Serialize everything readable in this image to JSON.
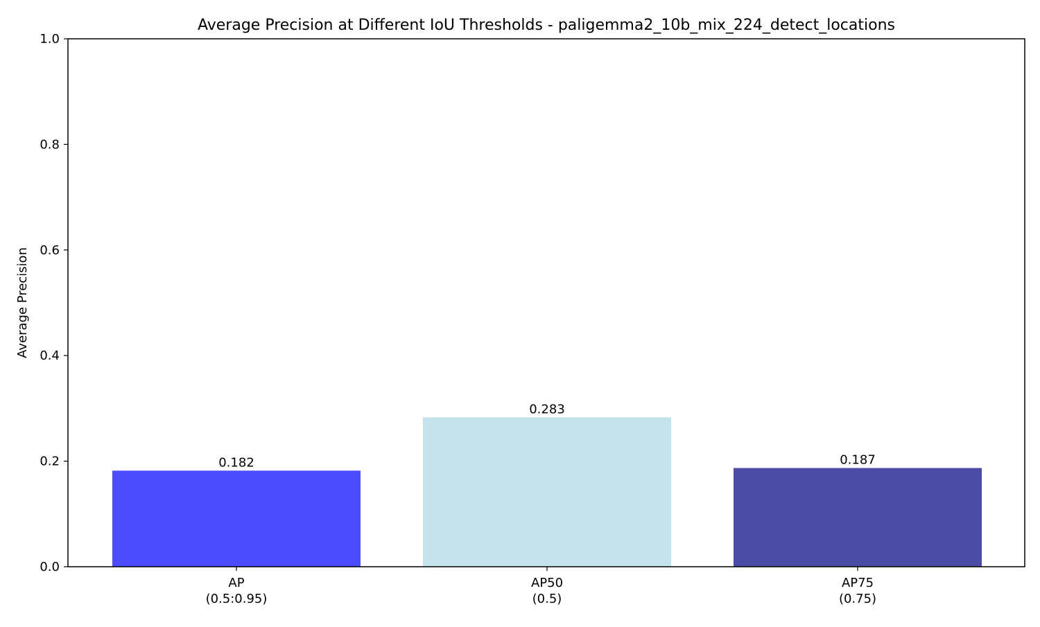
{
  "chart_data": {
    "type": "bar",
    "title": "Average Precision at Different IoU Thresholds - paligemma2_10b_mix_224_detect_locations",
    "xlabel": "",
    "ylabel": "Average Precision",
    "ylim": [
      0,
      1.0
    ],
    "yticks": [
      "0.0",
      "0.2",
      "0.4",
      "0.6",
      "0.8",
      "1.0"
    ],
    "grid": false,
    "legend": "none",
    "categories": [
      {
        "line1": "AP",
        "line2": "(0.5:0.95)"
      },
      {
        "line1": "AP50",
        "line2": "(0.5)"
      },
      {
        "line1": "AP75",
        "line2": "(0.75)"
      }
    ],
    "values": [
      0.182,
      0.283,
      0.187
    ],
    "value_labels": [
      "0.182",
      "0.283",
      "0.187"
    ],
    "colors": [
      "#4b4bff",
      "#c5e3ec",
      "#4b4ca8"
    ]
  }
}
